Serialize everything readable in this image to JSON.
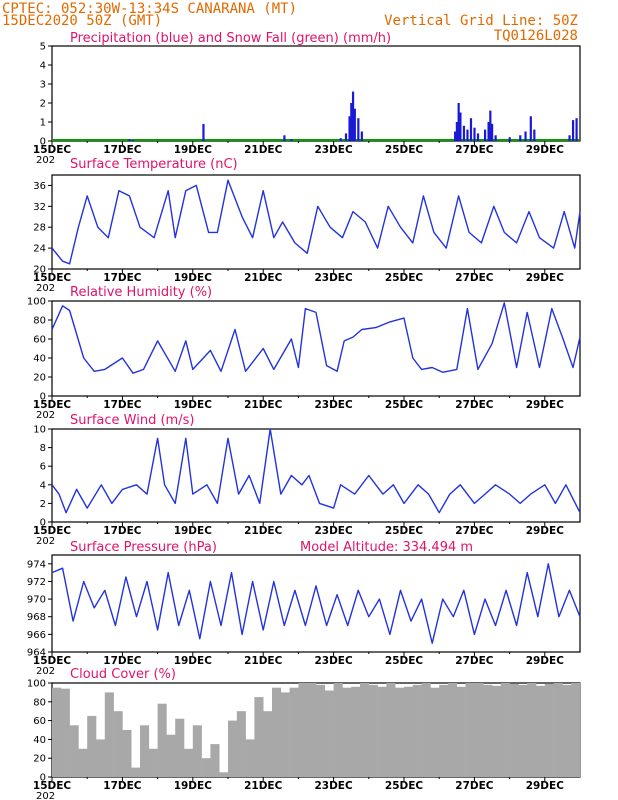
{
  "header": {
    "line1": "CPTEC:  052:30W-13:34S  CANARANA (MT)",
    "line2": "15DEC2020 50Z (GMT)",
    "grid_note": "Vertical Grid Line: 50Z",
    "code": "TQ0126L028"
  },
  "x_axis": {
    "start_label": "15DEC",
    "year_fragment": "202",
    "ticks": [
      "15DEC",
      "17DEC",
      "19DEC",
      "21DEC",
      "23DEC",
      "25DEC",
      "27DEC",
      "29DEC"
    ],
    "tick_days": [
      0,
      2,
      4,
      6,
      8,
      10,
      12,
      14
    ],
    "range_days": [
      0,
      15
    ]
  },
  "colors": {
    "header": "#e06a00",
    "panel_title": "#e0136b",
    "line": "#2233dd",
    "precip": "#1a1ad6",
    "snow": "#00a000",
    "cloud": "#a8a8a8"
  },
  "chart_data": [
    {
      "id": "precip",
      "type": "bar",
      "title": "Precipitation (blue) and Snow Fall (green) (mm/h)",
      "ylim": [
        0,
        5
      ],
      "yticks": [
        "0",
        "1",
        "2",
        "3",
        "4",
        "5"
      ],
      "series": [
        {
          "name": "Precipitation",
          "points": [
            [
              2.2,
              0.1
            ],
            [
              2.3,
              0.05
            ],
            [
              4.3,
              0.9
            ],
            [
              6.6,
              0.3
            ],
            [
              6.8,
              0.1
            ],
            [
              8.2,
              0.15
            ],
            [
              8.35,
              0.4
            ],
            [
              8.45,
              1.3
            ],
            [
              8.5,
              2.0
            ],
            [
              8.55,
              2.6
            ],
            [
              8.6,
              1.7
            ],
            [
              8.7,
              1.2
            ],
            [
              8.8,
              0.5
            ],
            [
              11.45,
              0.5
            ],
            [
              11.5,
              1.0
            ],
            [
              11.55,
              2.0
            ],
            [
              11.6,
              1.5
            ],
            [
              11.7,
              0.8
            ],
            [
              11.8,
              0.6
            ],
            [
              11.9,
              1.2
            ],
            [
              12.0,
              0.7
            ],
            [
              12.1,
              0.4
            ],
            [
              12.3,
              0.6
            ],
            [
              12.4,
              1.0
            ],
            [
              12.45,
              1.6
            ],
            [
              12.5,
              0.9
            ],
            [
              12.6,
              0.3
            ],
            [
              13.0,
              0.2
            ],
            [
              13.3,
              0.3
            ],
            [
              13.45,
              0.5
            ],
            [
              13.6,
              1.3
            ],
            [
              13.7,
              0.6
            ],
            [
              14.7,
              0.3
            ],
            [
              14.8,
              1.1
            ],
            [
              14.9,
              1.2
            ]
          ]
        },
        {
          "name": "Snow Fall",
          "values": []
        }
      ]
    },
    {
      "id": "temperature",
      "type": "line",
      "title": "Surface Temperature (nC)",
      "ylim": [
        20,
        38
      ],
      "yticks": [
        "20",
        "24",
        "28",
        "32",
        "36"
      ],
      "x": [
        0,
        0.3,
        0.5,
        0.75,
        1,
        1.3,
        1.6,
        1.9,
        2.2,
        2.5,
        2.9,
        3.3,
        3.5,
        3.8,
        4.1,
        4.45,
        4.7,
        5,
        5.4,
        5.7,
        6,
        6.3,
        6.55,
        6.9,
        7.25,
        7.55,
        7.9,
        8.25,
        8.55,
        8.9,
        9.25,
        9.55,
        9.9,
        10.25,
        10.55,
        10.85,
        11.2,
        11.55,
        11.85,
        12.2,
        12.55,
        12.85,
        13.2,
        13.55,
        13.85,
        14.25,
        14.55,
        14.85,
        15
      ],
      "values": [
        24,
        21.5,
        21,
        28,
        34,
        28,
        26,
        35,
        34,
        28,
        26,
        35,
        26,
        35,
        36,
        27,
        27,
        37,
        30,
        26,
        35,
        26,
        29,
        25,
        23,
        32,
        28,
        26,
        31,
        29,
        24,
        32,
        28,
        25,
        34,
        27,
        24,
        34,
        27,
        25,
        32,
        27,
        25,
        31,
        26,
        24,
        31,
        24,
        31
      ]
    },
    {
      "id": "humidity",
      "type": "line",
      "title": "Relative Humidity (%)",
      "ylim": [
        0,
        100
      ],
      "yticks": [
        "0",
        "20",
        "40",
        "60",
        "80",
        "100"
      ],
      "x": [
        0,
        0.3,
        0.5,
        0.9,
        1.2,
        1.5,
        2,
        2.3,
        2.6,
        3,
        3.5,
        3.8,
        4,
        4.5,
        4.8,
        5.2,
        5.5,
        6,
        6.3,
        6.8,
        7,
        7.2,
        7.5,
        7.8,
        8.1,
        8.3,
        8.55,
        8.8,
        9.2,
        9.6,
        10,
        10.25,
        10.5,
        10.8,
        11.1,
        11.5,
        11.8,
        12.1,
        12.5,
        12.85,
        13.2,
        13.5,
        13.85,
        14.2,
        14.5,
        14.8,
        15
      ],
      "values": [
        70,
        95,
        90,
        40,
        26,
        28,
        40,
        24,
        28,
        58,
        26,
        58,
        28,
        48,
        26,
        70,
        26,
        50,
        28,
        60,
        30,
        92,
        88,
        32,
        26,
        58,
        62,
        70,
        72,
        78,
        82,
        40,
        28,
        30,
        25,
        28,
        92,
        28,
        55,
        98,
        30,
        88,
        30,
        92,
        62,
        30,
        62
      ]
    },
    {
      "id": "wind",
      "type": "line",
      "title": "Surface Wind (m/s)",
      "ylim": [
        0,
        10
      ],
      "yticks": [
        "0",
        "2",
        "4",
        "6",
        "8",
        "10"
      ],
      "x": [
        0,
        0.2,
        0.4,
        0.7,
        1,
        1.4,
        1.7,
        2,
        2.4,
        2.7,
        3,
        3.2,
        3.5,
        3.8,
        4,
        4.4,
        4.7,
        5,
        5.3,
        5.6,
        5.9,
        6.2,
        6.5,
        6.8,
        7.1,
        7.3,
        7.6,
        8,
        8.2,
        8.6,
        9,
        9.4,
        9.7,
        10,
        10.4,
        10.7,
        11,
        11.3,
        11.6,
        12,
        12.3,
        12.6,
        13,
        13.3,
        13.6,
        14,
        14.3,
        14.6,
        15
      ],
      "values": [
        4,
        3,
        1,
        3.5,
        1.5,
        4,
        2,
        3.5,
        4,
        3,
        9,
        4,
        2,
        9,
        3,
        4,
        2,
        9,
        3,
        5,
        2,
        10,
        3,
        5,
        4,
        5,
        2,
        1.5,
        4,
        3,
        5,
        3,
        4,
        2,
        4,
        3,
        1,
        3,
        4,
        2,
        3,
        4,
        3,
        2,
        3,
        4,
        2,
        4,
        1
      ]
    },
    {
      "id": "pressure",
      "type": "line",
      "title": "Surface Pressure (hPa)",
      "note": "Model Altitude: 334.494 m",
      "ylim": [
        964,
        975
      ],
      "yticks": [
        "964",
        "966",
        "968",
        "970",
        "972",
        "974"
      ],
      "x": [
        0,
        0.3,
        0.6,
        0.9,
        1.2,
        1.5,
        1.8,
        2.1,
        2.4,
        2.7,
        3,
        3.3,
        3.6,
        3.9,
        4.2,
        4.5,
        4.8,
        5.1,
        5.4,
        5.7,
        6,
        6.3,
        6.6,
        6.9,
        7.2,
        7.5,
        7.8,
        8.1,
        8.4,
        8.7,
        9,
        9.3,
        9.6,
        9.9,
        10.2,
        10.5,
        10.8,
        11.1,
        11.4,
        11.7,
        12,
        12.3,
        12.6,
        12.9,
        13.2,
        13.5,
        13.8,
        14.1,
        14.4,
        14.7,
        15
      ],
      "values": [
        973,
        973.5,
        967.5,
        972,
        969,
        971,
        967,
        972.5,
        968,
        972,
        966.5,
        973,
        967,
        971,
        965.5,
        972,
        967,
        973,
        966,
        972,
        966.5,
        972,
        967,
        971,
        967,
        971.5,
        967,
        970.5,
        967,
        971,
        968,
        970,
        966,
        971,
        967.5,
        970,
        965,
        970,
        968,
        971,
        966,
        970,
        967,
        971,
        967,
        973,
        968,
        974,
        968,
        971,
        968
      ]
    },
    {
      "id": "cloud",
      "type": "bar",
      "title": "Cloud Cover (%)",
      "ylim": [
        0,
        100
      ],
      "yticks": [
        "0",
        "20",
        "40",
        "60",
        "80",
        "100"
      ],
      "x": [
        0,
        0.25,
        0.5,
        0.75,
        1,
        1.25,
        1.5,
        1.75,
        2,
        2.25,
        2.5,
        2.75,
        3,
        3.25,
        3.5,
        3.75,
        4,
        4.25,
        4.5,
        4.75,
        5,
        5.25,
        5.5,
        5.75,
        6,
        6.25,
        6.5,
        6.75,
        7,
        7.25,
        7.5,
        7.75,
        8,
        8.25,
        8.5,
        8.75,
        9,
        9.25,
        9.5,
        9.75,
        10,
        10.25,
        10.5,
        10.75,
        11,
        11.25,
        11.5,
        11.75,
        12,
        12.25,
        12.5,
        12.75,
        13,
        13.25,
        13.5,
        13.75,
        14,
        14.25,
        14.5,
        14.75
      ],
      "values": [
        95,
        94,
        55,
        30,
        65,
        40,
        90,
        70,
        50,
        10,
        55,
        30,
        78,
        45,
        62,
        30,
        55,
        20,
        35,
        5,
        60,
        70,
        40,
        85,
        70,
        95,
        90,
        95,
        100,
        100,
        98,
        92,
        100,
        95,
        96,
        100,
        98,
        96,
        100,
        95,
        96,
        98,
        100,
        95,
        98,
        100,
        96,
        100,
        100,
        98,
        97,
        100,
        99,
        98,
        100,
        97,
        99,
        100,
        98,
        100
      ]
    }
  ]
}
